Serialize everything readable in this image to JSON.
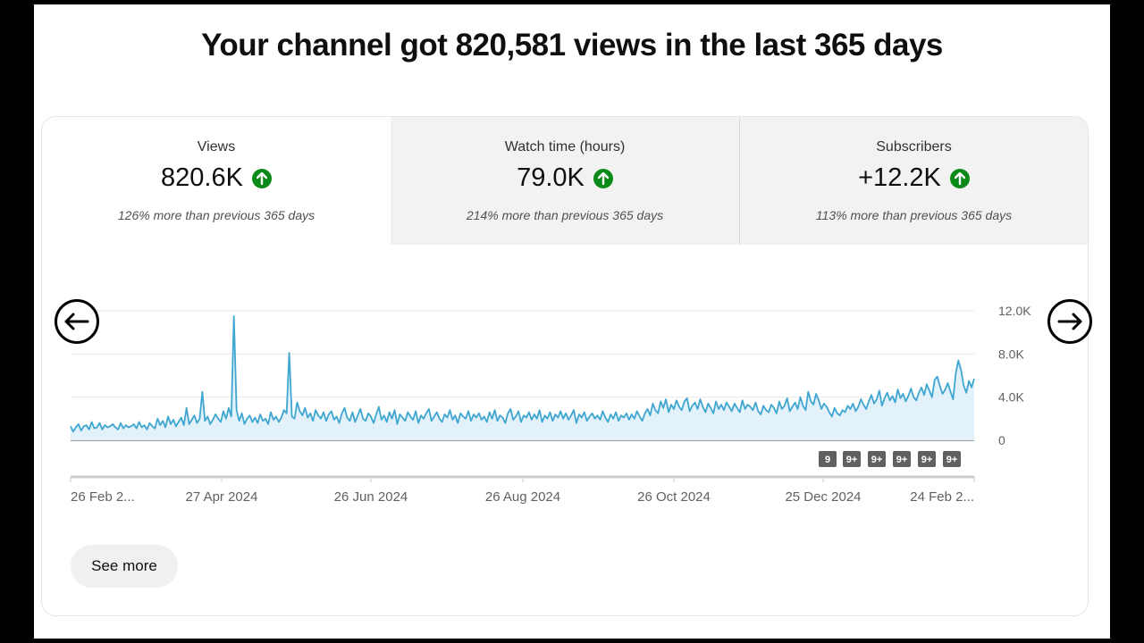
{
  "headline": "Your channel got 820,581 views in the last 365 days",
  "tabs": [
    {
      "title": "Views",
      "value": "820.6K",
      "delta": "126% more than previous 365 days",
      "trend": "up",
      "active": true
    },
    {
      "title": "Watch time (hours)",
      "value": "79.0K",
      "delta": "214% more than previous 365 days",
      "trend": "up",
      "active": false
    },
    {
      "title": "Subscribers",
      "value": "+12.2K",
      "delta": "113% more than previous 365 days",
      "trend": "up",
      "active": false
    }
  ],
  "colors": {
    "line": "#3ea6d0",
    "fill": "#e3f2fa",
    "trend_up": "#0b8a19",
    "badge": "#606060"
  },
  "chart_data": {
    "type": "area",
    "series": [
      {
        "name": "Views",
        "values": [
          1300,
          800,
          1200,
          1500,
          900,
          1300,
          1400,
          1000,
          1700,
          1100,
          1200,
          1600,
          1000,
          1400,
          1200,
          1300,
          1500,
          1200,
          1000,
          1600,
          1100,
          1400,
          1200,
          1300,
          1500,
          1100,
          1700,
          1200,
          1400,
          1000,
          1600,
          1300,
          1100,
          2000,
          1400,
          1800,
          1200,
          2200,
          1500,
          1900,
          1300,
          1700,
          2100,
          1400,
          3000,
          1500,
          1900,
          2300,
          1600,
          2000,
          4500,
          1800,
          2200,
          1500,
          1900,
          2400,
          2000,
          1700,
          2700,
          2000,
          3000,
          2200,
          11500,
          2800,
          1800,
          2500,
          1500,
          2000,
          2300,
          1700,
          2100,
          1600,
          2400,
          1800,
          2000,
          1500,
          2600,
          1900,
          2200,
          1700,
          2100,
          2800,
          2500,
          8100,
          2200,
          2000,
          3500,
          2700,
          2300,
          3000,
          2100,
          2500,
          1800,
          2800,
          2300,
          2000,
          2600,
          1800,
          2400,
          2700,
          1900,
          2200,
          1600,
          2500,
          3000,
          2100,
          1800,
          2600,
          1700,
          2300,
          2900,
          2000,
          1800,
          2500,
          2200,
          1600,
          2400,
          3100,
          1900,
          2300,
          1700,
          2600,
          2000,
          2800,
          1500,
          2400,
          2100,
          1800,
          2600,
          2200,
          1900,
          2700,
          1600,
          2300,
          2000,
          2500,
          2900,
          1800,
          2200,
          2600,
          2000,
          1700,
          2400,
          2100,
          2800,
          1900,
          2300,
          1600,
          2500,
          2200,
          2000,
          2700,
          1800,
          2400,
          2100,
          2500,
          1900,
          2200,
          1700,
          2600,
          2000,
          2800,
          1800,
          2300,
          2100,
          1600,
          2500,
          2900,
          1900,
          2200,
          2700,
          1700,
          2300,
          2100,
          2600,
          1900,
          2400,
          2000,
          2800,
          1700,
          2300,
          2000,
          2600,
          1800,
          2400,
          2100,
          2700,
          2000,
          2500,
          1900,
          2300,
          2800,
          1600,
          2400,
          2100,
          2600,
          1800,
          2200,
          2500,
          2000,
          2300,
          1900,
          2700,
          2100,
          1700,
          2400,
          2000,
          2600,
          1800,
          2300,
          2100,
          2500,
          1900,
          2400,
          2000,
          2700,
          2200,
          1800,
          2500,
          2900,
          2300,
          3400,
          2800,
          2500,
          3600,
          3000,
          3800,
          2600,
          3300,
          2900,
          3700,
          3100,
          2800,
          3600,
          3900,
          2700,
          3200,
          3500,
          2900,
          3800,
          3100,
          2600,
          3400,
          3000,
          2500,
          3600,
          2900,
          3300,
          2800,
          3500,
          3100,
          2700,
          3400,
          3000,
          2600,
          3700,
          2900,
          3300,
          3100,
          2800,
          3500,
          2700,
          2400,
          3200,
          2800,
          2600,
          3300,
          3000,
          2500,
          3600,
          2900,
          3200,
          3900,
          2700,
          3100,
          3500,
          2900,
          4000,
          3200,
          2800,
          4500,
          3600,
          3300,
          4300,
          3700,
          2900,
          3400,
          3100,
          2600,
          2200,
          3000,
          2500,
          2300,
          2800,
          2600,
          3200,
          2900,
          3400,
          2700,
          3100,
          3800,
          3300,
          2900,
          3600,
          4200,
          3400,
          3800,
          4600,
          3200,
          3900,
          4400,
          3700,
          4100,
          3500,
          4700,
          3900,
          4300,
          3600,
          4100,
          4800,
          4000,
          3700,
          4400,
          4900,
          4200,
          5200,
          4600,
          4000,
          5600,
          5900,
          5000,
          4300,
          4700,
          5300,
          4500,
          3800,
          6200,
          7400,
          6500,
          5100,
          4400,
          5500,
          4900,
          5700
        ]
      }
    ],
    "x_labels": [
      "26 Feb 2...",
      "27 Apr 2024",
      "26 Jun 2024",
      "26 Aug 2024",
      "26 Oct 2024",
      "25 Dec 2024",
      "24 Feb 2..."
    ],
    "y_ticks": [
      "12.0K",
      "8.0K",
      "4.0K",
      "0"
    ],
    "y_values": [
      12000,
      8000,
      4000,
      0
    ],
    "ylim": [
      0,
      12000
    ],
    "grid": true,
    "badges": [
      "9",
      "9+",
      "9+",
      "9+",
      "9+",
      "9+"
    ]
  },
  "nav": {
    "prev_icon": "arrow-left-icon",
    "next_icon": "arrow-right-icon"
  },
  "see_more": "See more"
}
